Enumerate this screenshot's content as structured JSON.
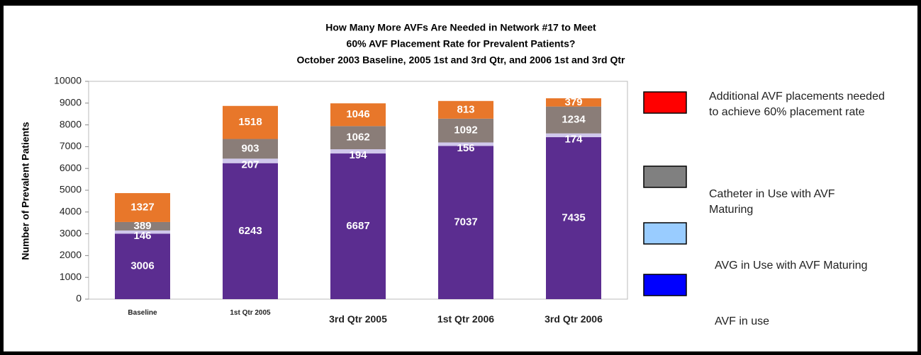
{
  "chart_data": {
    "type": "stacked_bar",
    "title": [
      "How Many More AVFs Are Needed in Network #17 to Meet",
      "60% AVF Placement Rate for Prevalent Patients?",
      "October 2003 Baseline, 2005 1st and 3rd  Qtr, and 2006 1st and 3rd Qtr"
    ],
    "y_label": "Number of  Prevalent Patients",
    "categories": [
      "Baseline",
      "1st Qtr 2005",
      "3rd Qtr 2005",
      "1st Qtr 2006",
      "3rd Qtr 2006"
    ],
    "series": [
      {
        "name": "AVF in use",
        "color": "#5b2d90",
        "legend_color": "#0000ff",
        "values": [
          3006,
          6243,
          6687,
          7037,
          7435
        ]
      },
      {
        "name": "AVG in Use with AVF Maturing",
        "color": "#d0c8ec",
        "legend_color": "#99ccff",
        "values": [
          146,
          207,
          194,
          156,
          174
        ]
      },
      {
        "name": "Catheter in Use with AVF Maturing",
        "color": "#8a7d78",
        "legend_color": "#808080",
        "values": [
          389,
          903,
          1062,
          1092,
          1234
        ]
      },
      {
        "name": "Additional AVF placements needed to achieve 60% placement rate",
        "color": "#e8772a",
        "legend_color": "#ff0000",
        "values": [
          1327,
          1518,
          1046,
          813,
          379
        ]
      }
    ],
    "ylim": [
      0,
      10000
    ],
    "yticks": [
      0,
      1000,
      2000,
      3000,
      4000,
      5000,
      6000,
      7000,
      8000,
      9000,
      10000
    ]
  }
}
